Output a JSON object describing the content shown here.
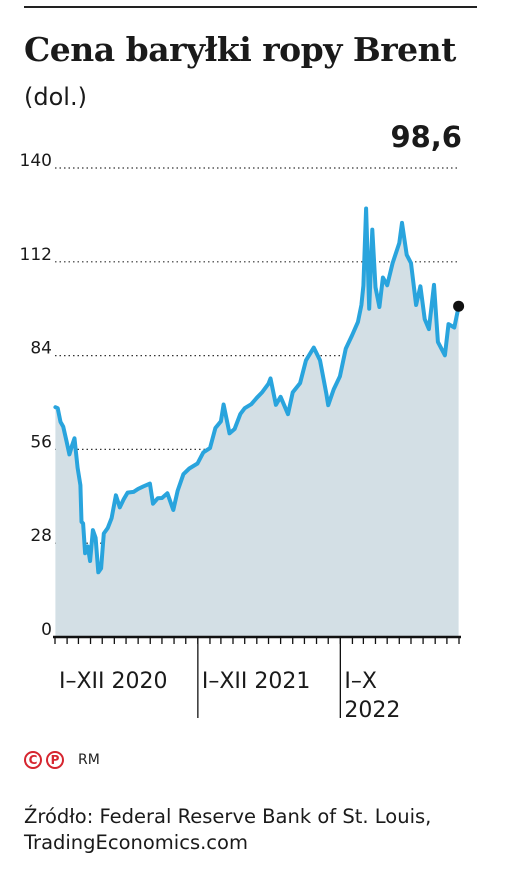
{
  "header": {
    "title": "Cena baryłki ropy Brent",
    "subtitle": "(dol.)",
    "last_value_label": "98,6"
  },
  "footer": {
    "brand_logo_1": "C",
    "brand_logo_2": "P",
    "author": "RM",
    "source_line1": "Źródło: Federal Reserve Bank of St. Louis,",
    "source_line2": "TradingEconomics.com"
  },
  "colors": {
    "line": "#29a4dd",
    "area": "#d3dfe5",
    "brand": "#d6252f"
  },
  "chart_data": {
    "type": "area",
    "title": "Cena baryłki ropy Brent",
    "ylabel": "(dol.)",
    "ylim": [
      0,
      140
    ],
    "yticks": [
      0,
      28,
      56,
      84,
      112,
      140
    ],
    "ytick_labels": [
      "0",
      "28",
      "56",
      "84",
      "112",
      "140"
    ],
    "grid": true,
    "xlim": [
      "2020-01-01",
      "2022-11-01"
    ],
    "x_sections": [
      {
        "label": "I–XII 2020",
        "start": "2020-01-01"
      },
      {
        "label": "I–XII 2021",
        "start": "2021-01-01"
      },
      {
        "label": "I–X\n2022",
        "start": "2022-01-01"
      }
    ],
    "series": [
      {
        "x": [
          "2020-01-02",
          "2020-01-08",
          "2020-01-15",
          "2020-01-22",
          "2020-01-31",
          "2020-02-07",
          "2020-02-14",
          "2020-02-20",
          "2020-02-28",
          "2020-03-06",
          "2020-03-09",
          "2020-03-13",
          "2020-03-18",
          "2020-03-25",
          "2020-03-31",
          "2020-04-07",
          "2020-04-14",
          "2020-04-21",
          "2020-04-28",
          "2020-05-05",
          "2020-05-15",
          "2020-05-25",
          "2020-06-05",
          "2020-06-15",
          "2020-06-25",
          "2020-07-05",
          "2020-07-20",
          "2020-08-01",
          "2020-08-15",
          "2020-08-31",
          "2020-09-08",
          "2020-09-20",
          "2020-10-01",
          "2020-10-15",
          "2020-10-30",
          "2020-11-10",
          "2020-11-25",
          "2020-12-10",
          "2020-12-31",
          "2021-01-15",
          "2021-02-01",
          "2021-02-15",
          "2021-03-01",
          "2021-03-08",
          "2021-03-23",
          "2021-04-05",
          "2021-04-20",
          "2021-05-01",
          "2021-05-18",
          "2021-06-01",
          "2021-06-15",
          "2021-07-01",
          "2021-07-06",
          "2021-07-20",
          "2021-08-01",
          "2021-08-20",
          "2021-09-01",
          "2021-09-20",
          "2021-10-05",
          "2021-10-25",
          "2021-11-10",
          "2021-11-26",
          "2021-12-01",
          "2021-12-15",
          "2021-12-31",
          "2022-01-15",
          "2022-01-31",
          "2022-02-15",
          "2022-02-24",
          "2022-03-01",
          "2022-03-08",
          "2022-03-16",
          "2022-03-24",
          "2022-04-01",
          "2022-04-11",
          "2022-04-20",
          "2022-05-01",
          "2022-05-15",
          "2022-06-01",
          "2022-06-08",
          "2022-06-20",
          "2022-07-01",
          "2022-07-14",
          "2022-07-25",
          "2022-08-05",
          "2022-08-16",
          "2022-08-29",
          "2022-09-08",
          "2022-09-26",
          "2022-10-05",
          "2022-10-20",
          "2022-10-31"
        ],
        "values": [
          68.6,
          68.3,
          64.2,
          62.8,
          58.2,
          54.5,
          57.3,
          59.3,
          50.5,
          45.3,
          34.4,
          33.9,
          25.0,
          27.0,
          22.7,
          31.9,
          29.6,
          19.3,
          20.5,
          30.9,
          32.5,
          35.5,
          42.3,
          38.7,
          41.1,
          43.1,
          43.3,
          44.2,
          45.0,
          45.8,
          39.8,
          41.4,
          41.5,
          42.9,
          37.9,
          43.6,
          48.6,
          50.3,
          51.8,
          55.1,
          56.4,
          62.4,
          64.4,
          69.4,
          60.8,
          62.1,
          66.6,
          68.3,
          69.5,
          71.4,
          73.1,
          75.6,
          77.2,
          69.3,
          71.7,
          66.5,
          73.0,
          75.8,
          82.6,
          86.4,
          82.6,
          72.7,
          69.2,
          73.9,
          77.8,
          86.1,
          90.0,
          94.0,
          99.1,
          104.9,
          127.9,
          98.0,
          121.6,
          104.4,
          98.5,
          107.3,
          105.0,
          111.6,
          117.6,
          123.6,
          114.1,
          111.6,
          99.1,
          104.7,
          94.9,
          91.9,
          105.1,
          88.1,
          84.1,
          93.4,
          92.4,
          98.6
        ]
      }
    ],
    "last_point": {
      "x": "2022-10-31",
      "value": 98.6
    }
  }
}
